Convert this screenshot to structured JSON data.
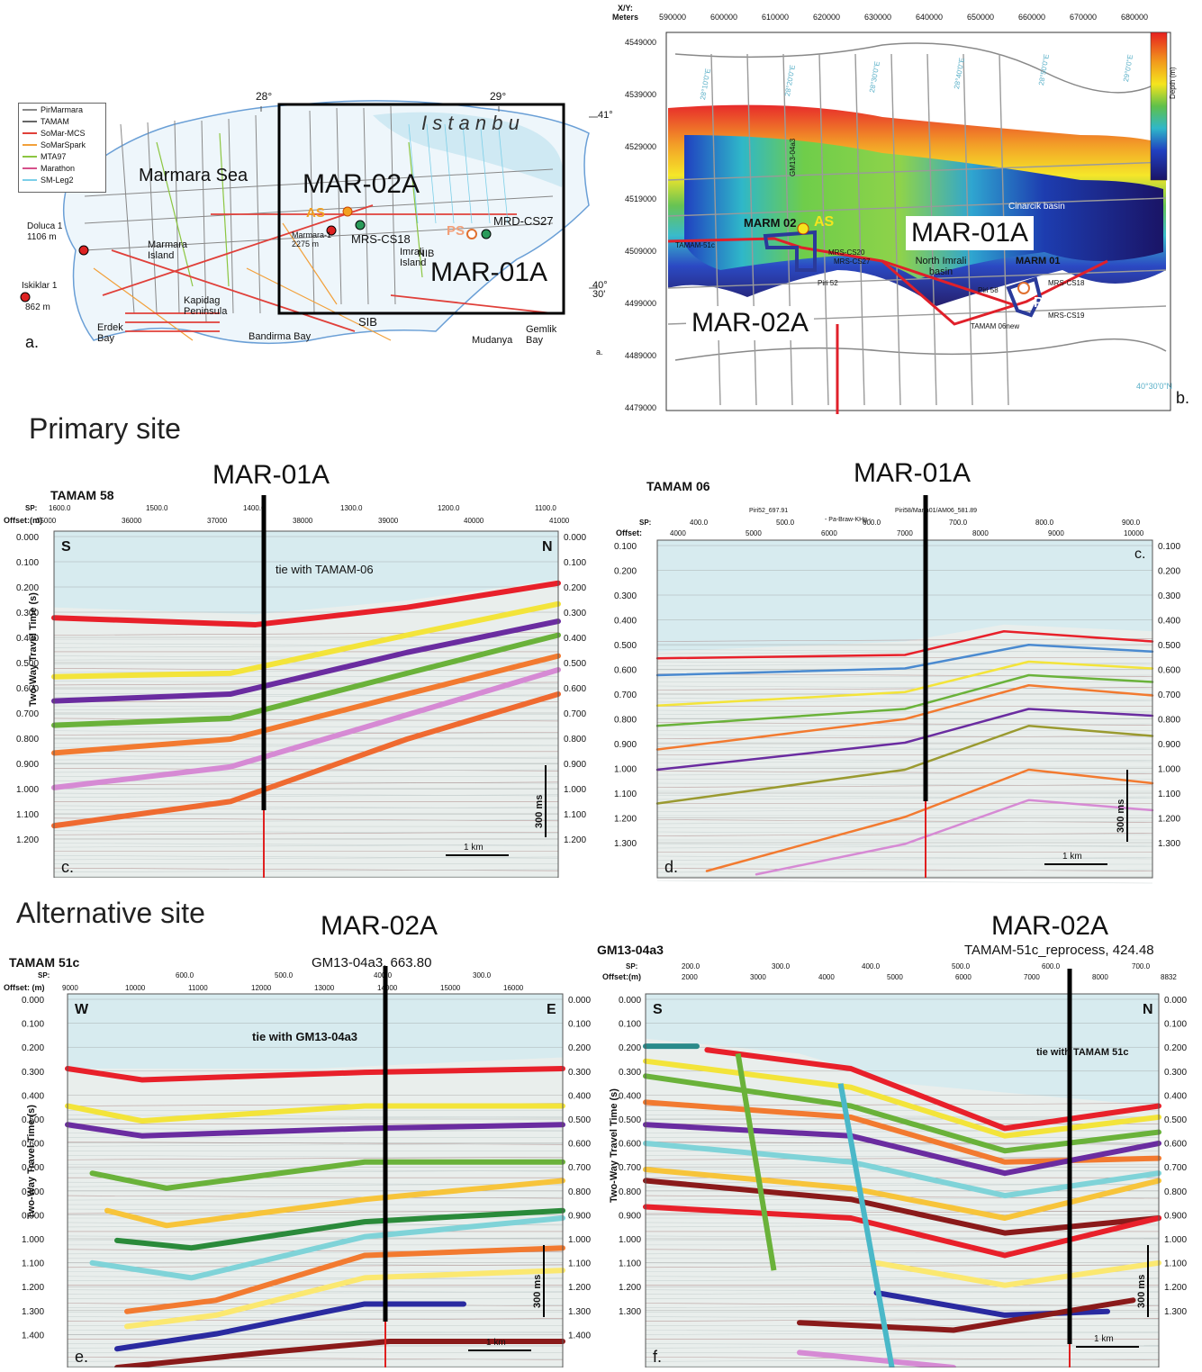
{
  "panel_a": {
    "letter": "a.",
    "footer_letter": "a.",
    "legend": [
      {
        "label": "PirMarmara",
        "color": "#888888"
      },
      {
        "label": "TAMAM",
        "color": "#666666"
      },
      {
        "label": "SoMar-MCS",
        "color": "#e0403a"
      },
      {
        "label": "SoMarSpark",
        "color": "#f2a03a"
      },
      {
        "label": "MTA97",
        "color": "#8cc641"
      },
      {
        "label": "Marathon",
        "color": "#d6508a"
      },
      {
        "label": "SM-Leg2",
        "color": "#7ccfe8"
      }
    ],
    "lon_28": "28°",
    "lon_29": "29°",
    "lat_41": "41°",
    "lat_4030": "40°\n30'",
    "sea": "Marmara Sea",
    "istanbul": "I s t a n b u",
    "mar02a": "MAR-02A",
    "mar01a": "MAR-01A",
    "as": "AS",
    "ps": "PS",
    "mrs_cs18": "MRS-CS18",
    "mrd_cs27": "MRD-CS27",
    "doluca": "Doluca 1",
    "doluca_depth": "1106 m",
    "iskiklar": "Iskiklar 1",
    "iskiklar_depth": "862 m",
    "marmara_island": "Marmara Island",
    "kapidag": "Kapidag Peninsula",
    "erdek": "Erdek Bay",
    "bandirma": "Bandirma Bay",
    "imrali": "Imrali Island",
    "gemlik": "Gemlik Bay",
    "mudanya": "Mudanya",
    "sib": "SIB",
    "nib": "NIB",
    "marmara1": "Marmara-1",
    "marmara1_depth": "2275 m"
  },
  "panel_b": {
    "letter": "b.",
    "xy_label": "X/Y:",
    "meters": "Meters",
    "x_ticks": [
      "590000",
      "600000",
      "610000",
      "620000",
      "630000",
      "640000",
      "650000",
      "660000",
      "670000",
      "680000"
    ],
    "y_ticks": [
      "4549000",
      "4539000",
      "4529000",
      "4519000",
      "4509000",
      "4499000",
      "4489000",
      "4479000"
    ],
    "lon_labels": [
      "28°10'0\"E",
      "28°20'0\"E",
      "28°30'0\"E",
      "28°40'0\"E",
      "28°50'0\"E",
      "29°0'0\"E"
    ],
    "lat_label": "40°30'0\"N",
    "depth_label": "Depth (m)",
    "marm02": "MARM 02",
    "gm13": "GM13-04a3",
    "as": "AS",
    "ps": "PS",
    "tamam51c": "TAMAM-51c",
    "mrs_cs20": "MRS-CS20",
    "mrs_cs27": "MRS-CS27",
    "piri52": "Piri 52",
    "piri58": "Piri 58",
    "mrs_cs18": "MRS-CS18",
    "mrs_cs19": "MRS-CS19",
    "tamam06": "TAMAM 06new",
    "cinarcik": "Cinarcik basin",
    "north_imrali": "North Imrali basin",
    "marm01": "MARM 01",
    "mar01a": "MAR-01A",
    "mar02a": "MAR-02A"
  },
  "headings": {
    "primary": "Primary site",
    "alternative": "Alternative site"
  },
  "panel_c": {
    "title": "MAR-01A",
    "line": "TAMAM 58",
    "letter": "c.",
    "sp_label": "SP:",
    "offset_label": "Offset:(m)",
    "sp_ticks": [
      "1600.0",
      "1500.0",
      "1400.0",
      "1300.0",
      "1200.0",
      "1100.0"
    ],
    "offset_ticks": [
      "35000",
      "36000",
      "37000",
      "38000",
      "39000",
      "40000",
      "41000"
    ],
    "dir_left": "S",
    "dir_right": "N",
    "tie": "tie with TAMAM-06",
    "ylabel": "Two-Way Travel Time (s)",
    "y_ticks": [
      "0.000",
      "0.100",
      "0.200",
      "0.300",
      "0.400",
      "0.500",
      "0.600",
      "0.700",
      "0.800",
      "0.900",
      "1.000",
      "1.100",
      "1.200"
    ],
    "scale_time": "300 ms",
    "scale_dist": "1 km"
  },
  "panel_d": {
    "title": "MAR-01A",
    "line": "TAMAM 06",
    "letter": "d.",
    "letter_c": "c.",
    "sp_label": "SP:",
    "offset_label": "Offset:",
    "header_a": "Piri52_697.91",
    "header_b": "Piri58/Marm01/AM06_581.89",
    "header_c": "- Pa-Braw-KHg -",
    "sp_ticks": [
      "400.0",
      "500.0",
      "600.0",
      "700.0",
      "800.0",
      "900.0"
    ],
    "offset_ticks": [
      "4000",
      "5000",
      "6000",
      "7000",
      "8000",
      "9000",
      "10000"
    ],
    "y_ticks": [
      "0.100",
      "0.200",
      "0.300",
      "0.400",
      "0.500",
      "0.600",
      "0.700",
      "0.800",
      "0.900",
      "1.000",
      "1.100",
      "1.200",
      "1.300"
    ],
    "scale_time": "300 ms",
    "scale_dist": "1 km"
  },
  "panel_e": {
    "title": "MAR-02A",
    "line": "TAMAM 51c",
    "tie_top": "GM13-04a3, 663.80",
    "letter": "e.",
    "sp_label": "SP:",
    "offset_label": "Offset: (m)",
    "sp_ticks": [
      "600.0",
      "500.0",
      "400.0",
      "300.0"
    ],
    "offset_ticks": [
      "9000",
      "10000",
      "11000",
      "12000",
      "13000",
      "14000",
      "15000",
      "16000"
    ],
    "dir_left": "W",
    "dir_right": "E",
    "tie": "tie with GM13-04a3",
    "ylabel": "Two-Way Travel Time (s)",
    "y_ticks": [
      "0.000",
      "0.100",
      "0.200",
      "0.300",
      "0.400",
      "0.500",
      "0.600",
      "0.700",
      "0.800",
      "0.900",
      "1.000",
      "1.100",
      "1.200",
      "1.300",
      "1.400"
    ],
    "scale_time": "300 ms",
    "scale_dist": "1 km"
  },
  "panel_f": {
    "title": "MAR-02A",
    "line": "GM13-04a3",
    "tie_top": "TAMAM-51c_reprocess, 424.48",
    "letter": "f.",
    "sp_label": "SP:",
    "offset_label": "Offset:(m)",
    "sp_ticks": [
      "200.0",
      "300.0",
      "400.0",
      "500.0",
      "600.0",
      "700.0"
    ],
    "offset_ticks": [
      "2000",
      "3000",
      "4000",
      "5000",
      "6000",
      "7000",
      "8000",
      "8832"
    ],
    "dir_left": "S",
    "dir_right": "N",
    "tie": "tie with TAMAM 51c",
    "ylabel": "Two-Way Travel Time (s)",
    "y_ticks": [
      "0.000",
      "0.100",
      "0.200",
      "0.300",
      "0.400",
      "0.500",
      "0.600",
      "0.700",
      "0.800",
      "0.900",
      "1.000",
      "1.100",
      "1.200",
      "1.300"
    ],
    "scale_time": "300 ms",
    "scale_dist": "1 km"
  }
}
